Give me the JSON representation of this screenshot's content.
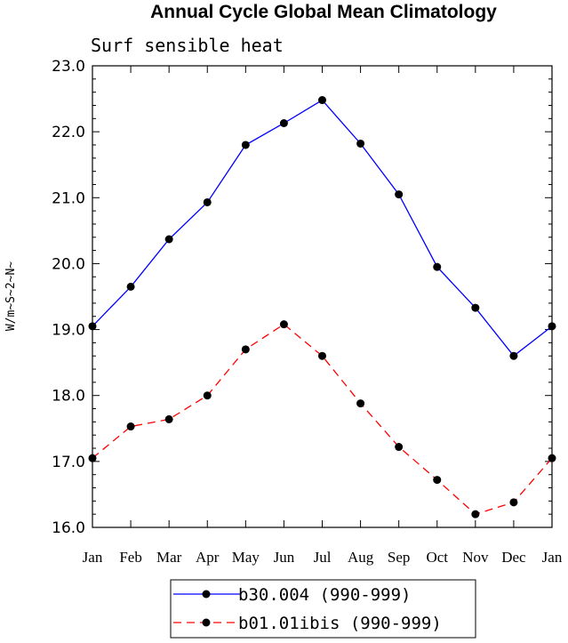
{
  "chart_data": {
    "type": "line",
    "title": "Annual Cycle Global Mean Climatology",
    "subtitle": "Surf sensible heat",
    "ylabel": "W/m~S~2~N~",
    "xlabel": "",
    "ylim": [
      16.0,
      23.0
    ],
    "yticks": [
      "16.0",
      "17.0",
      "18.0",
      "19.0",
      "20.0",
      "21.0",
      "22.0",
      "23.0"
    ],
    "categories": [
      "Jan",
      "Feb",
      "Mar",
      "Apr",
      "May",
      "Jun",
      "Jul",
      "Aug",
      "Sep",
      "Oct",
      "Nov",
      "Dec",
      "Jan"
    ],
    "grid": false,
    "legend_position": "bottom",
    "series": [
      {
        "name": "b30.004 (990-999)",
        "color": "#0000ff",
        "dash": "solid",
        "values": [
          19.05,
          19.65,
          20.37,
          20.93,
          21.8,
          22.13,
          22.48,
          21.82,
          21.05,
          19.95,
          19.33,
          18.6,
          19.05
        ]
      },
      {
        "name": "b01.01ibis (990-999)",
        "color": "#ff0000",
        "dash": "dashed",
        "values": [
          17.05,
          17.53,
          17.64,
          18.0,
          18.7,
          19.08,
          18.6,
          17.88,
          17.22,
          16.72,
          16.2,
          16.38,
          17.05
        ]
      }
    ]
  }
}
